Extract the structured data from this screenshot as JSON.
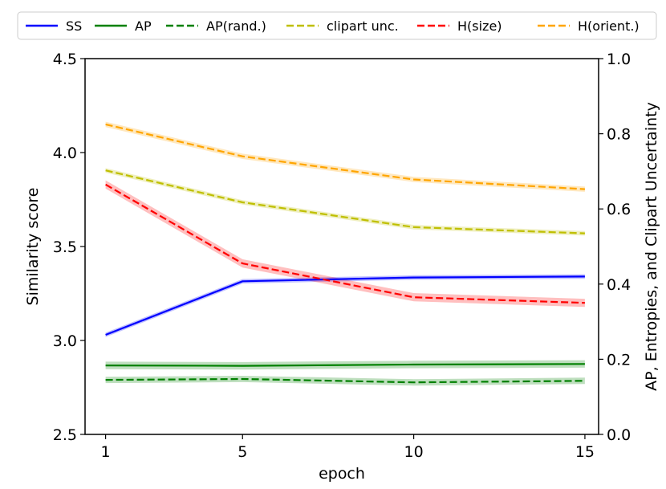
{
  "chart_data": {
    "type": "line",
    "xlabel": "epoch",
    "ylabel_left": "Similarity score",
    "ylabel_right": "AP, Entropies, and Clipart Uncertainty",
    "x": [
      1,
      5,
      10,
      15
    ],
    "xticks": [
      "1",
      "5",
      "10",
      "15"
    ],
    "xlim": [
      0.4,
      15.4
    ],
    "ylim_left": [
      2.5,
      4.5
    ],
    "yticks_left": [
      "2.5",
      "3.0",
      "3.5",
      "4.0",
      "4.5"
    ],
    "ylim_right": [
      0.0,
      1.0
    ],
    "yticks_right": [
      "0.0",
      "0.2",
      "0.4",
      "0.6",
      "0.8",
      "1.0"
    ],
    "grid": false,
    "legend_position": "top, above plot",
    "series": [
      {
        "name": "SS",
        "axis": "left",
        "color": "#0000ff",
        "dash": "solid",
        "values": [
          3.03,
          3.315,
          3.335,
          3.34
        ],
        "band": 0.012
      },
      {
        "name": "AP",
        "axis": "left",
        "color": "#008000",
        "dash": "solid",
        "values": [
          2.867,
          2.865,
          2.872,
          2.875
        ],
        "band": 0.02
      },
      {
        "name": "AP(rand.)",
        "axis": "left",
        "color": "#008000",
        "dash": "dashed",
        "values": [
          2.79,
          2.795,
          2.777,
          2.785
        ],
        "band": 0.017
      },
      {
        "name": "clipart unc.",
        "axis": "left",
        "color": "#bfbf00",
        "dash": "dashed",
        "values": [
          3.905,
          3.735,
          3.603,
          3.57
        ],
        "band": 0.012
      },
      {
        "name": "H(size)",
        "axis": "left",
        "color": "#ff0000",
        "dash": "dashed",
        "values": [
          3.83,
          3.41,
          3.23,
          3.2
        ],
        "band": 0.022
      },
      {
        "name": "H(orient.)",
        "axis": "left",
        "color": "#ffa500",
        "dash": "dashed",
        "values": [
          4.15,
          3.98,
          3.857,
          3.805
        ],
        "band": 0.014
      }
    ]
  }
}
